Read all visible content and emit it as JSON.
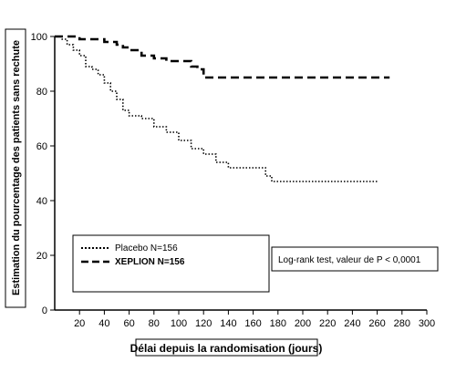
{
  "chart_data": {
    "type": "line",
    "xlabel": "Délai depuis la randomisation (jours)",
    "ylabel": "Estimation du pourcentage des patients sans rechute",
    "xlim": [
      0,
      300
    ],
    "ylim": [
      0,
      100
    ],
    "x_ticks": [
      20,
      40,
      60,
      80,
      100,
      120,
      140,
      160,
      180,
      200,
      220,
      240,
      260,
      280,
      300
    ],
    "y_ticks": [
      0,
      20,
      40,
      60,
      80,
      100
    ],
    "grid": false,
    "legend_position": "bottom-left",
    "annotation": "Log-rank test, valeur de P < 0,0001",
    "series": [
      {
        "name": "Placebo N=156",
        "style": "dotted",
        "x": [
          0,
          6,
          10,
          15,
          20,
          25,
          30,
          35,
          40,
          45,
          50,
          55,
          60,
          70,
          80,
          90,
          100,
          110,
          120,
          130,
          140,
          150,
          160,
          170,
          175,
          200,
          230,
          260
        ],
        "y": [
          100,
          99,
          97,
          95,
          93,
          89,
          88,
          86,
          83,
          80,
          77,
          73,
          71,
          70,
          67,
          65,
          62,
          59,
          57,
          54,
          52,
          52,
          52,
          49,
          47,
          47,
          47,
          47
        ]
      },
      {
        "name": "XEPLION N=156",
        "style": "dashed",
        "x": [
          0,
          10,
          20,
          30,
          40,
          50,
          55,
          60,
          70,
          80,
          90,
          100,
          110,
          115,
          120,
          150,
          200,
          250,
          270
        ],
        "y": [
          100,
          100,
          99,
          99,
          98,
          97,
          96,
          95,
          93,
          92,
          91,
          91,
          89,
          88,
          85,
          85,
          85,
          85,
          85
        ]
      }
    ]
  },
  "legend": {
    "placebo_label": "Placebo N=156",
    "xeplion_label": "XEPLION N=156"
  },
  "colors": {
    "line": "#000000",
    "background": "#ffffff"
  }
}
